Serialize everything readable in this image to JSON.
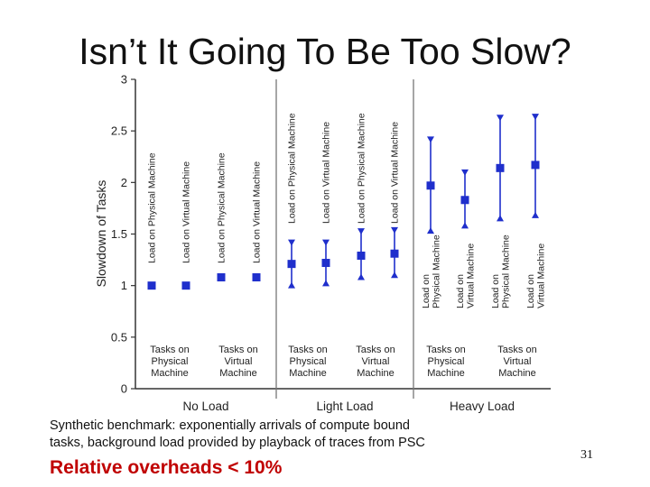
{
  "slide": {
    "title": "Isn’t It Going To Be Too Slow?",
    "caption_line1": "Synthetic benchmark: exponentially arrivals of compute bound",
    "caption_line2": "tasks, background load provided by playback of traces from PSC",
    "conclusion": "Relative overheads < 10%",
    "slide_number": "31"
  },
  "chart_data": {
    "type": "scatter",
    "title": "",
    "ylabel": "Slowdown of Tasks",
    "xlabel": "",
    "ylim": [
      0,
      3
    ],
    "yticks": [
      {
        "value": 0,
        "label": "0"
      },
      {
        "value": 0.5,
        "label": "0.5"
      },
      {
        "value": 1,
        "label": "1"
      },
      {
        "value": 1.5,
        "label": "1.5"
      },
      {
        "value": 2,
        "label": "2"
      },
      {
        "value": 2.5,
        "label": "2.5"
      },
      {
        "value": 3,
        "label": "3"
      }
    ],
    "color": "#1f2fcc",
    "groups": [
      {
        "label": "No Load",
        "bottom_labels": [
          [
            "Tasks on",
            "Physical",
            "Machine"
          ],
          [
            "Tasks on",
            "Virtual",
            "Machine"
          ]
        ]
      },
      {
        "label": "Light Load",
        "bottom_labels": [
          [
            "Tasks on",
            "Physical",
            "Machine"
          ],
          [
            "Tasks on",
            "Virtual",
            "Machine"
          ]
        ]
      },
      {
        "label": "Heavy Load",
        "bottom_labels": [
          [
            "Tasks on",
            "Physical",
            "Machine"
          ],
          [
            "Tasks on",
            "Virtual",
            "Machine"
          ]
        ]
      }
    ],
    "points": [
      {
        "group": 0,
        "label": [
          "Load on Physical Machine"
        ],
        "mean": 1.0,
        "upper": null,
        "lower": null
      },
      {
        "group": 0,
        "label": [
          "Load on Virtual Machine"
        ],
        "mean": 1.0,
        "upper": null,
        "lower": null
      },
      {
        "group": 0,
        "label": [
          "Load on Physical Machine"
        ],
        "mean": 1.08,
        "upper": null,
        "lower": null
      },
      {
        "group": 0,
        "label": [
          "Load on Virtual Machine"
        ],
        "mean": 1.08,
        "upper": null,
        "lower": null
      },
      {
        "group": 1,
        "label": [
          "Load on Physical Machine"
        ],
        "mean": 1.21,
        "upper": 1.42,
        "lower": 1.0
      },
      {
        "group": 1,
        "label": [
          "Load on Virtual Machine"
        ],
        "mean": 1.22,
        "upper": 1.42,
        "lower": 1.02
      },
      {
        "group": 1,
        "label": [
          "Load on Physical Machine"
        ],
        "mean": 1.29,
        "upper": 1.53,
        "lower": 1.08
      },
      {
        "group": 1,
        "label": [
          "Load on Virtual Machine"
        ],
        "mean": 1.31,
        "upper": 1.54,
        "lower": 1.1
      },
      {
        "group": 2,
        "label": [
          "Load on",
          "Physical Machine"
        ],
        "mean": 1.97,
        "upper": 2.42,
        "lower": 1.53
      },
      {
        "group": 2,
        "label": [
          "Load on",
          "Virtual Machine"
        ],
        "mean": 1.83,
        "upper": 2.1,
        "lower": 1.58
      },
      {
        "group": 2,
        "label": [
          "Load on",
          "Physical Machine"
        ],
        "mean": 2.14,
        "upper": 2.63,
        "lower": 1.65
      },
      {
        "group": 2,
        "label": [
          "Load on",
          "Virtual Machine"
        ],
        "mean": 2.17,
        "upper": 2.64,
        "lower": 1.68
      }
    ]
  }
}
